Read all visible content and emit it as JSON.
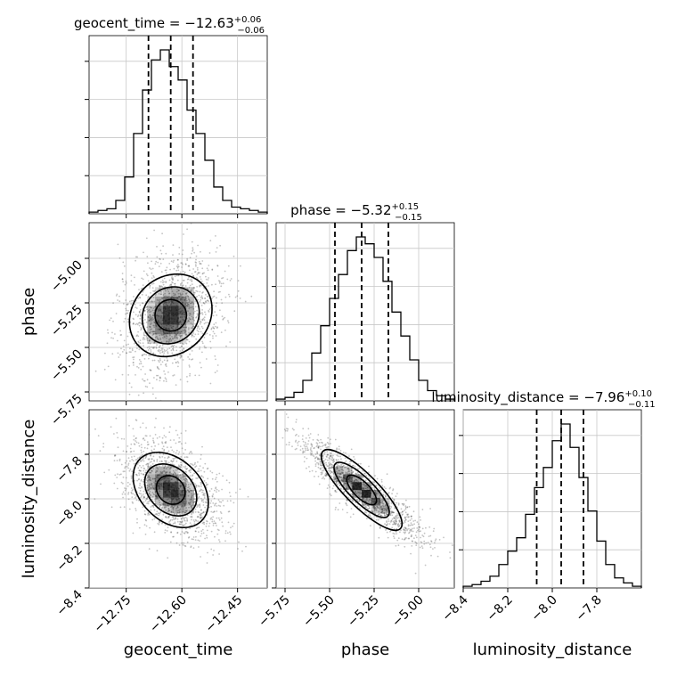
{
  "chart_data": {
    "type": "corner",
    "parameters": [
      {
        "name": "geocent_time",
        "title": "geocent_time = −12.63",
        "title_plus": "+0.06",
        "title_minus": "−0.06",
        "median": -12.63,
        "q16": -12.69,
        "q84": -12.57,
        "range": [
          -12.85,
          -12.37
        ],
        "ticks": [
          -12.75,
          -12.6,
          -12.45
        ],
        "tick_labels": [
          "−12.75",
          "−12.60",
          "−12.45"
        ],
        "hist_edges_start": -12.85,
        "hist_bin_width": 0.024,
        "hist_counts": [
          1,
          2,
          3,
          8,
          22,
          48,
          74,
          92,
          98,
          88,
          80,
          62,
          48,
          32,
          16,
          8,
          4,
          3,
          2,
          1
        ]
      },
      {
        "name": "phase",
        "title": "phase = −5.32",
        "title_plus": "+0.15",
        "title_minus": "−0.15",
        "median": -5.32,
        "q16": -5.47,
        "q84": -5.17,
        "range": [
          -5.8,
          -4.8
        ],
        "ticks": [
          -5.75,
          -5.5,
          -5.25,
          -5.0
        ],
        "tick_labels": [
          "−5.75",
          "−5.50",
          "−5.25",
          "−5.00"
        ],
        "hist_edges_start": -5.8,
        "hist_bin_width": 0.05,
        "hist_counts": [
          1,
          2,
          5,
          12,
          28,
          44,
          60,
          74,
          88,
          96,
          92,
          84,
          70,
          52,
          38,
          24,
          12,
          6,
          3,
          1
        ]
      },
      {
        "name": "luminosity_distance",
        "title": "luminosity_distance = −7.96",
        "title_plus": "+0.10",
        "title_minus": "−0.11",
        "median": -7.96,
        "q16": -8.07,
        "q84": -7.86,
        "range": [
          -8.4,
          -7.6
        ],
        "ticks": [
          -8.4,
          -8.2,
          -8.0,
          -7.8
        ],
        "tick_labels": [
          "−8.4",
          "−8.2",
          "−8.0",
          "−7.8"
        ],
        "hist_edges_start": -8.4,
        "hist_bin_width": 0.04,
        "hist_counts": [
          1,
          2,
          4,
          7,
          14,
          22,
          30,
          44,
          60,
          72,
          88,
          98,
          84,
          66,
          46,
          28,
          14,
          6,
          3,
          1
        ]
      }
    ],
    "pairs": [
      {
        "x": "geocent_time",
        "y": "phase",
        "x_index": 0,
        "y_index": 1,
        "correlation": 0.25,
        "sd": [
          0.06,
          0.15
        ]
      },
      {
        "x": "geocent_time",
        "y": "luminosity_distance",
        "x_index": 0,
        "y_index": 2,
        "correlation": -0.45,
        "sd": [
          0.06,
          0.1
        ]
      },
      {
        "x": "phase",
        "y": "luminosity_distance",
        "x_index": 1,
        "y_index": 2,
        "correlation": -0.9,
        "sd": [
          0.15,
          0.1
        ]
      }
    ],
    "quantile_lines": "dashed",
    "grid": true,
    "scatter_color": "#555555",
    "density_color": "#000000",
    "contour_color": "#000000"
  }
}
